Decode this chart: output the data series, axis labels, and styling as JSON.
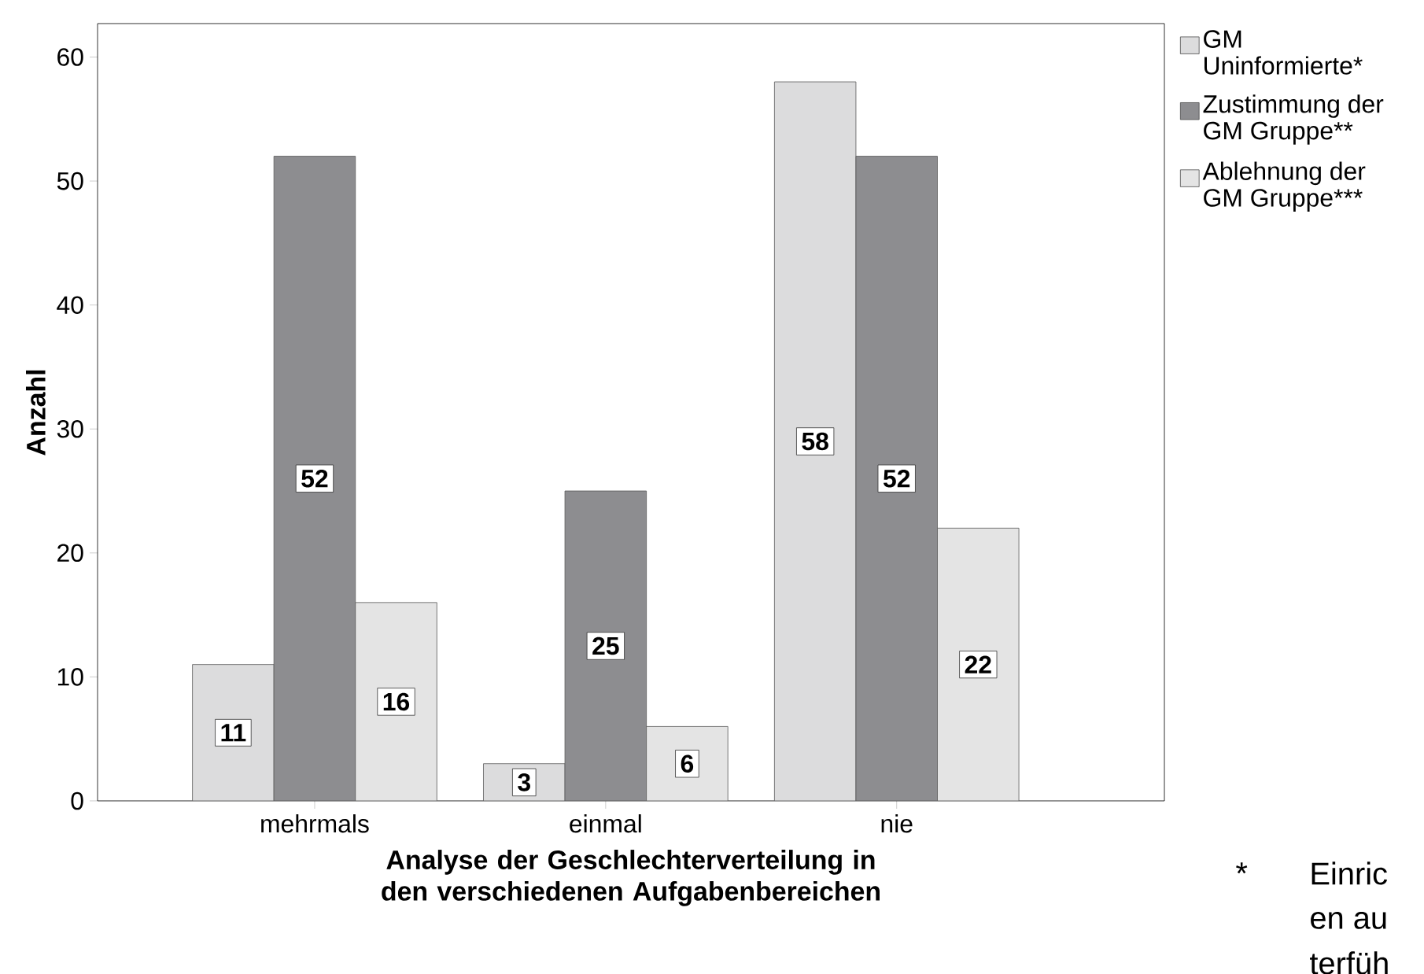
{
  "chart_data": {
    "type": "bar",
    "xlabel": "Analyse der Geschlechterverteilung in den verschiedenen Aufgabenbereichen",
    "ylabel": "Anzahl",
    "categories": [
      "mehrmals",
      "einmal",
      "nie"
    ],
    "series": [
      {
        "name": "GM Uninformierte*",
        "color": "#dcdcdd",
        "values": [
          11,
          3,
          58
        ]
      },
      {
        "name": "Zustimmung der GM Gruppe**",
        "color": "#8d8d90",
        "values": [
          52,
          25,
          52
        ]
      },
      {
        "name": "Ablehnung der GM Gruppe***",
        "color": "#e4e4e4",
        "values": [
          16,
          6,
          22
        ]
      }
    ],
    "ylim": [
      0,
      62.7
    ],
    "yticks": [
      0,
      10,
      20,
      30,
      40,
      50,
      60
    ],
    "grid": false,
    "legend": "top right",
    "data_labels": true,
    "annotations": [
      "*",
      "Einric",
      "en au",
      "terfüh"
    ]
  }
}
